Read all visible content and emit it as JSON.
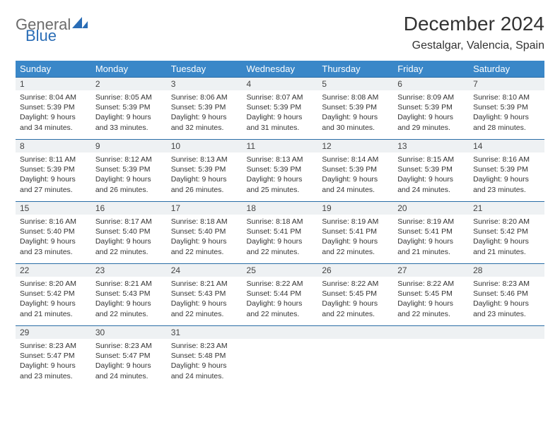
{
  "header": {
    "logo_general": "General",
    "logo_blue": "Blue",
    "month_title": "December 2024",
    "location": "Gestalgar, Valencia, Spain"
  },
  "colors": {
    "header_bg": "#3a87c8",
    "header_text": "#ffffff",
    "daynum_bg": "#eef1f3",
    "daynum_border": "#2a6da6",
    "logo_gray": "#6b6b6b",
    "logo_blue": "#2a6db6"
  },
  "weekdays": [
    "Sunday",
    "Monday",
    "Tuesday",
    "Wednesday",
    "Thursday",
    "Friday",
    "Saturday"
  ],
  "labels": {
    "sunrise": "Sunrise:",
    "sunset": "Sunset:",
    "daylight": "Daylight:"
  },
  "days": [
    {
      "n": "1",
      "sunrise": "8:04 AM",
      "sunset": "5:39 PM",
      "daylight": "9 hours and 34 minutes."
    },
    {
      "n": "2",
      "sunrise": "8:05 AM",
      "sunset": "5:39 PM",
      "daylight": "9 hours and 33 minutes."
    },
    {
      "n": "3",
      "sunrise": "8:06 AM",
      "sunset": "5:39 PM",
      "daylight": "9 hours and 32 minutes."
    },
    {
      "n": "4",
      "sunrise": "8:07 AM",
      "sunset": "5:39 PM",
      "daylight": "9 hours and 31 minutes."
    },
    {
      "n": "5",
      "sunrise": "8:08 AM",
      "sunset": "5:39 PM",
      "daylight": "9 hours and 30 minutes."
    },
    {
      "n": "6",
      "sunrise": "8:09 AM",
      "sunset": "5:39 PM",
      "daylight": "9 hours and 29 minutes."
    },
    {
      "n": "7",
      "sunrise": "8:10 AM",
      "sunset": "5:39 PM",
      "daylight": "9 hours and 28 minutes."
    },
    {
      "n": "8",
      "sunrise": "8:11 AM",
      "sunset": "5:39 PM",
      "daylight": "9 hours and 27 minutes."
    },
    {
      "n": "9",
      "sunrise": "8:12 AM",
      "sunset": "5:39 PM",
      "daylight": "9 hours and 26 minutes."
    },
    {
      "n": "10",
      "sunrise": "8:13 AM",
      "sunset": "5:39 PM",
      "daylight": "9 hours and 26 minutes."
    },
    {
      "n": "11",
      "sunrise": "8:13 AM",
      "sunset": "5:39 PM",
      "daylight": "9 hours and 25 minutes."
    },
    {
      "n": "12",
      "sunrise": "8:14 AM",
      "sunset": "5:39 PM",
      "daylight": "9 hours and 24 minutes."
    },
    {
      "n": "13",
      "sunrise": "8:15 AM",
      "sunset": "5:39 PM",
      "daylight": "9 hours and 24 minutes."
    },
    {
      "n": "14",
      "sunrise": "8:16 AM",
      "sunset": "5:39 PM",
      "daylight": "9 hours and 23 minutes."
    },
    {
      "n": "15",
      "sunrise": "8:16 AM",
      "sunset": "5:40 PM",
      "daylight": "9 hours and 23 minutes."
    },
    {
      "n": "16",
      "sunrise": "8:17 AM",
      "sunset": "5:40 PM",
      "daylight": "9 hours and 22 minutes."
    },
    {
      "n": "17",
      "sunrise": "8:18 AM",
      "sunset": "5:40 PM",
      "daylight": "9 hours and 22 minutes."
    },
    {
      "n": "18",
      "sunrise": "8:18 AM",
      "sunset": "5:41 PM",
      "daylight": "9 hours and 22 minutes."
    },
    {
      "n": "19",
      "sunrise": "8:19 AM",
      "sunset": "5:41 PM",
      "daylight": "9 hours and 22 minutes."
    },
    {
      "n": "20",
      "sunrise": "8:19 AM",
      "sunset": "5:41 PM",
      "daylight": "9 hours and 21 minutes."
    },
    {
      "n": "21",
      "sunrise": "8:20 AM",
      "sunset": "5:42 PM",
      "daylight": "9 hours and 21 minutes."
    },
    {
      "n": "22",
      "sunrise": "8:20 AM",
      "sunset": "5:42 PM",
      "daylight": "9 hours and 21 minutes."
    },
    {
      "n": "23",
      "sunrise": "8:21 AM",
      "sunset": "5:43 PM",
      "daylight": "9 hours and 22 minutes."
    },
    {
      "n": "24",
      "sunrise": "8:21 AM",
      "sunset": "5:43 PM",
      "daylight": "9 hours and 22 minutes."
    },
    {
      "n": "25",
      "sunrise": "8:22 AM",
      "sunset": "5:44 PM",
      "daylight": "9 hours and 22 minutes."
    },
    {
      "n": "26",
      "sunrise": "8:22 AM",
      "sunset": "5:45 PM",
      "daylight": "9 hours and 22 minutes."
    },
    {
      "n": "27",
      "sunrise": "8:22 AM",
      "sunset": "5:45 PM",
      "daylight": "9 hours and 22 minutes."
    },
    {
      "n": "28",
      "sunrise": "8:23 AM",
      "sunset": "5:46 PM",
      "daylight": "9 hours and 23 minutes."
    },
    {
      "n": "29",
      "sunrise": "8:23 AM",
      "sunset": "5:47 PM",
      "daylight": "9 hours and 23 minutes."
    },
    {
      "n": "30",
      "sunrise": "8:23 AM",
      "sunset": "5:47 PM",
      "daylight": "9 hours and 24 minutes."
    },
    {
      "n": "31",
      "sunrise": "8:23 AM",
      "sunset": "5:48 PM",
      "daylight": "9 hours and 24 minutes."
    }
  ]
}
